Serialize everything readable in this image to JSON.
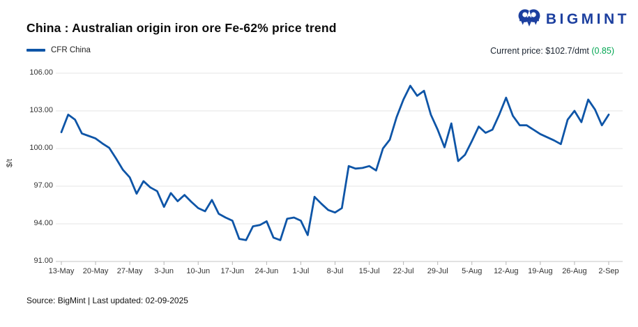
{
  "header": {
    "title": "China : Australian origin iron ore Fe-62% price trend",
    "logo_text": "BIGMINT",
    "logo_color": "#1c3f9f",
    "current_price_text": "Current price: $102.7/dmt",
    "current_price_change": "(0.85)",
    "change_color": "#00a551"
  },
  "footer": {
    "source": "Source: BigMint | Last updated: 02-09-2025"
  },
  "chart_data": {
    "type": "line",
    "title": "China : Australian origin iron ore Fe-62% price trend",
    "ylabel": "$/t",
    "xlabel": "",
    "ylim": [
      91,
      106
    ],
    "y_tick_step": 3,
    "grid": true,
    "legend_position": "top-left",
    "line_color": "#0e55a7",
    "grid_color": "#e6e6e6",
    "axis_color": "#c4c4c4",
    "y_tick_labels": [
      "91.00",
      "94.00",
      "97.00",
      "100.00",
      "103.00",
      "106.00"
    ],
    "x_tick_labels": [
      "13-May",
      "20-May",
      "27-May",
      "3-Jun",
      "10-Jun",
      "17-Jun",
      "24-Jun",
      "1-Jul",
      "8-Jul",
      "15-Jul",
      "22-Jul",
      "29-Jul",
      "5-Aug",
      "12-Aug",
      "19-Aug",
      "26-Aug",
      "2-Sep"
    ],
    "current_price": "$102.7/dmt",
    "change": "0.85",
    "series": [
      {
        "name": "CFR China",
        "dates": [
          "13-May",
          "14-May",
          "15-May",
          "16-May",
          "19-May",
          "20-May",
          "21-May",
          "22-May",
          "23-May",
          "26-May",
          "27-May",
          "28-May",
          "29-May",
          "30-May",
          "2-Jun",
          "3-Jun",
          "4-Jun",
          "5-Jun",
          "6-Jun",
          "9-Jun",
          "10-Jun",
          "11-Jun",
          "12-Jun",
          "13-Jun",
          "16-Jun",
          "17-Jun",
          "18-Jun",
          "19-Jun",
          "20-Jun",
          "23-Jun",
          "24-Jun",
          "25-Jun",
          "26-Jun",
          "27-Jun",
          "30-Jun",
          "1-Jul",
          "2-Jul",
          "3-Jul",
          "4-Jul",
          "7-Jul",
          "8-Jul",
          "9-Jul",
          "10-Jul",
          "11-Jul",
          "14-Jul",
          "15-Jul",
          "16-Jul",
          "17-Jul",
          "18-Jul",
          "21-Jul",
          "22-Jul",
          "23-Jul",
          "24-Jul",
          "25-Jul",
          "28-Jul",
          "29-Jul",
          "30-Jul",
          "31-Jul",
          "1-Aug",
          "4-Aug",
          "5-Aug",
          "6-Aug",
          "7-Aug",
          "8-Aug",
          "11-Aug",
          "12-Aug",
          "13-Aug",
          "14-Aug",
          "15-Aug",
          "18-Aug",
          "19-Aug",
          "20-Aug",
          "21-Aug",
          "22-Aug",
          "25-Aug",
          "26-Aug",
          "27-Aug",
          "28-Aug",
          "29-Aug",
          "1-Sep",
          "2-Sep"
        ],
        "values": [
          101.3,
          102.7,
          102.3,
          101.2,
          101.0,
          100.8,
          100.4,
          100.05,
          99.2,
          98.3,
          97.7,
          96.4,
          97.4,
          96.9,
          96.6,
          95.35,
          96.45,
          95.8,
          96.3,
          95.75,
          95.25,
          95.0,
          95.9,
          94.8,
          94.5,
          94.25,
          92.8,
          92.7,
          93.8,
          93.9,
          94.2,
          92.9,
          92.7,
          94.4,
          94.5,
          94.25,
          93.1,
          96.15,
          95.6,
          95.1,
          94.9,
          95.25,
          98.6,
          98.4,
          98.45,
          98.6,
          98.25,
          100.0,
          100.7,
          102.5,
          103.9,
          105.0,
          104.2,
          104.6,
          102.7,
          101.5,
          100.1,
          102.0,
          99.0,
          99.5,
          100.6,
          101.75,
          101.25,
          101.5,
          102.7,
          104.05,
          102.6,
          101.85,
          101.85,
          101.5,
          101.15,
          100.9,
          100.65,
          100.35,
          102.3,
          103.0,
          102.1,
          103.9,
          103.1,
          101.85,
          102.7
        ]
      }
    ]
  }
}
